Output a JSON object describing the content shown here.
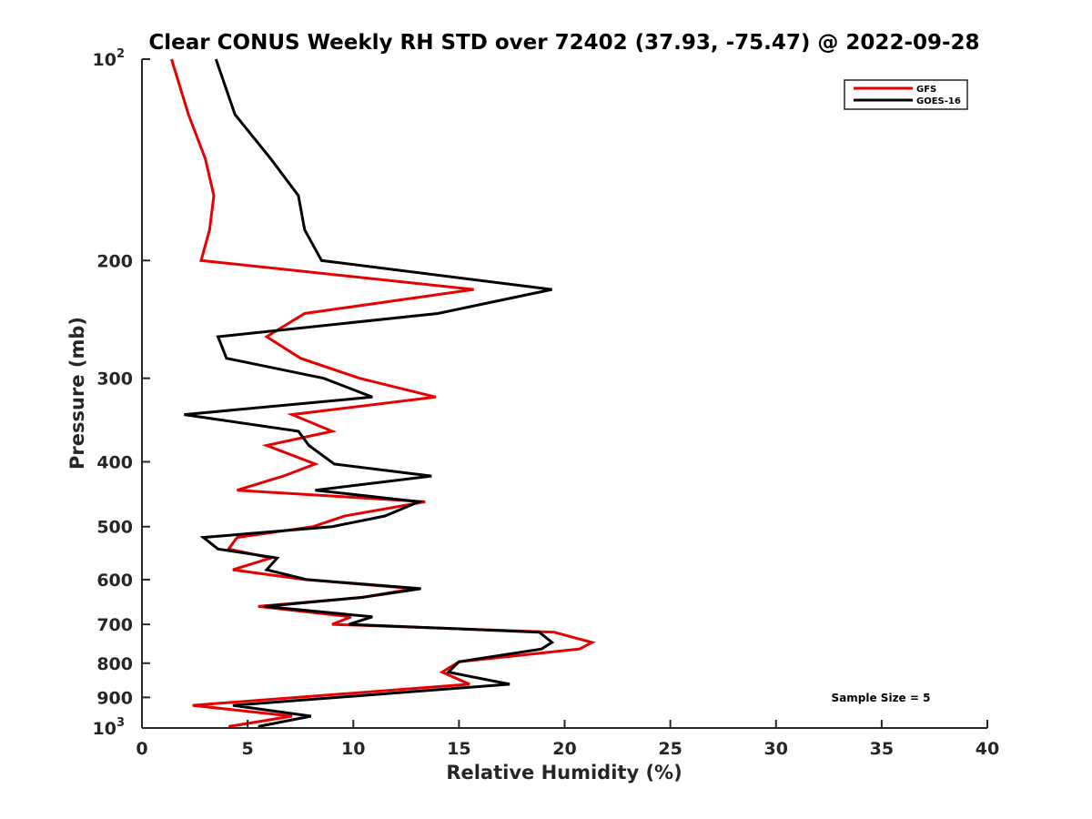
{
  "chart_data": {
    "type": "line",
    "title": "Clear CONUS Weekly RH STD over 72402 (37.93, -75.47) @ 2022-09-28",
    "xlabel": "Relative Humidity (%)",
    "ylabel": "Pressure (mb)",
    "xlim": [
      0,
      40
    ],
    "ylim": [
      100,
      1000
    ],
    "yscale": "log",
    "y_reversed": true,
    "grid": false,
    "x_ticks": [
      0,
      5,
      10,
      15,
      20,
      25,
      30,
      35,
      40
    ],
    "x_tick_labels": [
      "0",
      "5",
      "10",
      "15",
      "20",
      "25",
      "30",
      "35",
      "40"
    ],
    "y_ticks": [
      100,
      200,
      300,
      400,
      500,
      600,
      700,
      800,
      900,
      1000
    ],
    "y_tick_labels": [
      {
        "base": "10",
        "exp": "2"
      },
      {
        "base": "200",
        "exp": ""
      },
      {
        "base": "300",
        "exp": ""
      },
      {
        "base": "400",
        "exp": ""
      },
      {
        "base": "500",
        "exp": ""
      },
      {
        "base": "600",
        "exp": ""
      },
      {
        "base": "700",
        "exp": ""
      },
      {
        "base": "800",
        "exp": ""
      },
      {
        "base": "900",
        "exp": ""
      },
      {
        "base": "10",
        "exp": "3"
      }
    ],
    "legend": {
      "placement": "top-right"
    },
    "annotation": "Sample Size = 5",
    "series": [
      {
        "name": "GFS",
        "color": "#e60000",
        "points": [
          [
            100,
            1.4
          ],
          [
            121,
            2.2
          ],
          [
            141,
            3.0
          ],
          [
            160,
            3.4
          ],
          [
            180,
            3.2
          ],
          [
            200,
            2.8
          ],
          [
            221,
            15.7
          ],
          [
            240,
            7.7
          ],
          [
            260,
            5.9
          ],
          [
            280,
            7.5
          ],
          [
            300,
            10.3
          ],
          [
            320,
            13.9
          ],
          [
            340,
            7.1
          ],
          [
            360,
            9.0
          ],
          [
            378,
            5.9
          ],
          [
            403,
            8.2
          ],
          [
            420,
            6.7
          ],
          [
            441,
            4.5
          ],
          [
            459,
            13.4
          ],
          [
            482,
            9.6
          ],
          [
            500,
            8.1
          ],
          [
            519,
            4.5
          ],
          [
            540,
            4.1
          ],
          [
            557,
            6.1
          ],
          [
            580,
            4.3
          ],
          [
            600,
            7.7
          ],
          [
            619,
            12.9
          ],
          [
            638,
            10.4
          ],
          [
            658,
            5.5
          ],
          [
            682,
            9.9
          ],
          [
            700,
            9.0
          ],
          [
            719,
            19.5
          ],
          [
            745,
            21.3
          ],
          [
            762,
            20.7
          ],
          [
            796,
            15.0
          ],
          [
            825,
            14.2
          ],
          [
            860,
            15.5
          ],
          [
            925,
            2.4
          ],
          [
            960,
            7.1
          ],
          [
            995,
            4.1
          ]
        ]
      },
      {
        "name": "GOES-16",
        "color": "#000000",
        "points": [
          [
            100,
            3.5
          ],
          [
            121,
            4.4
          ],
          [
            141,
            6.1
          ],
          [
            160,
            7.4
          ],
          [
            180,
            7.7
          ],
          [
            200,
            8.5
          ],
          [
            221,
            19.4
          ],
          [
            240,
            14.0
          ],
          [
            260,
            3.6
          ],
          [
            280,
            4.0
          ],
          [
            300,
            8.6
          ],
          [
            320,
            10.9
          ],
          [
            340,
            2.0
          ],
          [
            360,
            7.4
          ],
          [
            378,
            7.9
          ],
          [
            403,
            9.1
          ],
          [
            420,
            13.7
          ],
          [
            441,
            8.2
          ],
          [
            459,
            13.1
          ],
          [
            482,
            11.5
          ],
          [
            500,
            9.0
          ],
          [
            519,
            2.9
          ],
          [
            540,
            3.6
          ],
          [
            557,
            6.4
          ],
          [
            580,
            5.9
          ],
          [
            600,
            7.8
          ],
          [
            619,
            13.2
          ],
          [
            638,
            10.4
          ],
          [
            658,
            5.8
          ],
          [
            682,
            10.9
          ],
          [
            700,
            9.8
          ],
          [
            719,
            18.8
          ],
          [
            745,
            19.4
          ],
          [
            762,
            18.9
          ],
          [
            796,
            15.0
          ],
          [
            825,
            14.5
          ],
          [
            860,
            17.4
          ],
          [
            925,
            4.3
          ],
          [
            960,
            8.0
          ],
          [
            995,
            5.5
          ]
        ]
      }
    ]
  }
}
